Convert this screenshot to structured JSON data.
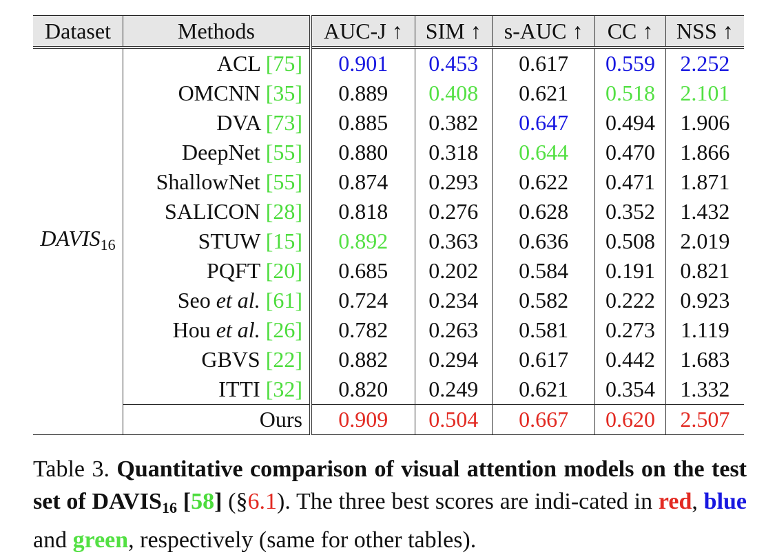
{
  "header": {
    "dataset": "Dataset",
    "methods": "Methods",
    "auc_j": "AUC-J ↑",
    "sim": "SIM ↑",
    "s_auc": "s-AUC ↑",
    "cc": "CC ↑",
    "nss": "NSS ↑"
  },
  "dataset_name": "DAVIS",
  "dataset_sub": "16",
  "rows": [
    {
      "method": "ACL",
      "ref": "75",
      "auc_j": "0.901",
      "sim": "0.453",
      "s_auc": "0.617",
      "cc": "0.559",
      "nss": "2.252"
    },
    {
      "method": "OMCNN",
      "ref": "35",
      "auc_j": "0.889",
      "sim": "0.408",
      "s_auc": "0.621",
      "cc": "0.518",
      "nss": "2.101"
    },
    {
      "method": "DVA",
      "ref": "73",
      "auc_j": "0.885",
      "sim": "0.382",
      "s_auc": "0.647",
      "cc": "0.494",
      "nss": "1.906"
    },
    {
      "method": "DeepNet",
      "ref": "55",
      "auc_j": "0.880",
      "sim": "0.318",
      "s_auc": "0.644",
      "cc": "0.470",
      "nss": "1.866"
    },
    {
      "method": "ShallowNet",
      "ref": "55",
      "auc_j": "0.874",
      "sim": "0.293",
      "s_auc": "0.622",
      "cc": "0.471",
      "nss": "1.871"
    },
    {
      "method": "SALICON",
      "ref": "28",
      "auc_j": "0.818",
      "sim": "0.276",
      "s_auc": "0.628",
      "cc": "0.352",
      "nss": "1.432"
    },
    {
      "method": "STUW",
      "ref": "15",
      "auc_j": "0.892",
      "sim": "0.363",
      "s_auc": "0.636",
      "cc": "0.508",
      "nss": "2.019"
    },
    {
      "method": "PQFT",
      "ref": "20",
      "auc_j": "0.685",
      "sim": "0.202",
      "s_auc": "0.584",
      "cc": "0.191",
      "nss": "0.821"
    },
    {
      "method": "Seo",
      "method_it": "et al.",
      "ref": "61",
      "auc_j": "0.724",
      "sim": "0.234",
      "s_auc": "0.582",
      "cc": "0.222",
      "nss": "0.923"
    },
    {
      "method": "Hou",
      "method_it": "et al.",
      "ref": "26",
      "auc_j": "0.782",
      "sim": "0.263",
      "s_auc": "0.581",
      "cc": "0.273",
      "nss": "1.119"
    },
    {
      "method": "GBVS",
      "ref": "22",
      "auc_j": "0.882",
      "sim": "0.294",
      "s_auc": "0.617",
      "cc": "0.442",
      "nss": "1.683"
    },
    {
      "method": "ITTI",
      "ref": "32",
      "auc_j": "0.820",
      "sim": "0.249",
      "s_auc": "0.621",
      "cc": "0.354",
      "nss": "1.332"
    }
  ],
  "ours": {
    "method": "Ours",
    "auc_j": "0.909",
    "sim": "0.504",
    "s_auc": "0.667",
    "cc": "0.620",
    "nss": "2.507"
  },
  "caption": {
    "label": "Table 3.",
    "bold_a": "Quantitative comparison of visual attention models on the test set of DAVIS",
    "bold_sub": "16",
    "bold_lb": "[",
    "ref": "58",
    "bold_rb": "]",
    "sec_open": "(§",
    "sec": "6.1",
    "sec_close": ").",
    "text_a": "The three best scores are indi-cated in",
    "red_word": "red",
    "comma": ",",
    "blue_word": "blue",
    "and": "and",
    "green_word": "green",
    "text_b": ", respectively (same for other tables)."
  },
  "colors": {
    "red": "#e22a22",
    "blue": "#1717e0",
    "green": "#53e043",
    "ref": "#4cdc3c"
  }
}
